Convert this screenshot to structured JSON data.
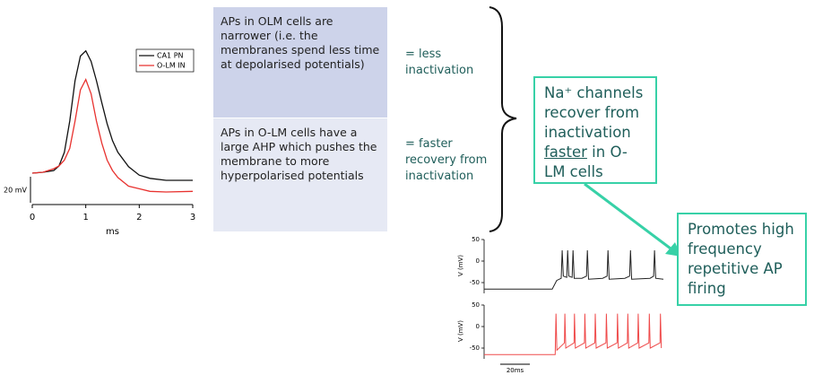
{
  "text_boxes": [
    {
      "text": "APs in OLM cells are narrower (i.e. the membranes spend less time at depolarised potentials)"
    },
    {
      "text": "APs in O-LM cells have a large AHP which pushes the membrane to more hyperpolarised potentials"
    }
  ],
  "notes": [
    "= less inactivation",
    "= faster recovery from inactivation"
  ],
  "callout": {
    "before": "Na⁺ channels recover from inactivation",
    "emphasis": "faster",
    "after": "in O-LM cells"
  },
  "result": "Promotes high frequency repetitive AP firing",
  "chart_data": [
    {
      "type": "line",
      "x": [
        0,
        0.2,
        0.4,
        0.5,
        0.6,
        0.7,
        0.8,
        0.9,
        1.0,
        1.1,
        1.2,
        1.3,
        1.4,
        1.5,
        1.6,
        1.8,
        2.0,
        2.2,
        2.5,
        3.0
      ],
      "xlim": [
        0,
        3
      ],
      "xticks": [
        0,
        1,
        2,
        3
      ],
      "xlabel": "ms",
      "legend": "upper right",
      "scale_bar": {
        "value": 20,
        "label": "20 mV"
      },
      "series": [
        {
          "name": "CA1 PN",
          "color": "#111111",
          "values": [
            0,
            0.7,
            2,
            5.5,
            16,
            40,
            71,
            90,
            94,
            86,
            71,
            54,
            38,
            25,
            16,
            5,
            -1.5,
            -4,
            -5.5,
            -5.5
          ]
        },
        {
          "name": "O-LM IN",
          "color": "#e8322f",
          "values": [
            0,
            0.7,
            3.4,
            5.5,
            10,
            19,
            40,
            64,
            72,
            61,
            40,
            23,
            10,
            2,
            -3.4,
            -10,
            -12,
            -14,
            -14.5,
            -14
          ]
        }
      ]
    },
    {
      "type": "line",
      "ylabel": "V (mV)",
      "xlim": [
        0,
        121
      ],
      "ylim": [
        -75,
        50
      ],
      "yticks": [
        50,
        0,
        -50
      ],
      "x": [
        0,
        46,
        49,
        52,
        52.7,
        53.5,
        55.8,
        56.4,
        57.2,
        59.4,
        60,
        60.8,
        66,
        69.1,
        69.7,
        70.5,
        80,
        83,
        83.6,
        84.4,
        95,
        98.2,
        98.8,
        99.6,
        112,
        114.4,
        115,
        115.8,
        121
      ],
      "series": [
        {
          "color": "#222222",
          "values": [
            -65,
            -65,
            -45,
            -40,
            25,
            -35,
            -38,
            25,
            -35,
            -38,
            25,
            -40,
            -40,
            -35,
            25,
            -42,
            -40,
            -35,
            25,
            -42,
            -40,
            -35,
            25,
            -42,
            -40,
            -35,
            25,
            -40,
            -42
          ]
        }
      ]
    },
    {
      "type": "line",
      "ylabel": "V (mV)",
      "xlim": [
        0,
        121
      ],
      "ylim": [
        -75,
        50
      ],
      "yticks": [
        50,
        0,
        -50
      ],
      "x_scale_bar": {
        "value": 20,
        "label": "20ms"
      },
      "x": [
        0,
        48,
        48.5,
        49.1,
        54.2,
        54.5,
        55.1,
        60.7,
        61,
        61.6,
        67.7,
        68,
        68.6,
        74.7,
        75,
        75.6,
        82.2,
        82.5,
        83.1,
        89.7,
        90,
        90.6,
        96.7,
        97,
        97.6,
        103.7,
        104,
        104.6,
        111.2,
        111.5,
        112.1,
        118.7,
        119,
        119.6
      ],
      "series": [
        {
          "color": "#ef4a4a",
          "values": [
            -65,
            -65,
            30,
            -55,
            -38,
            30,
            -50,
            -38,
            30,
            -50,
            -38,
            30,
            -50,
            -38,
            30,
            -50,
            -38,
            30,
            -50,
            -38,
            30,
            -50,
            -38,
            30,
            -50,
            -38,
            30,
            -50,
            -38,
            30,
            -50,
            -38,
            30,
            -50
          ]
        }
      ]
    }
  ]
}
